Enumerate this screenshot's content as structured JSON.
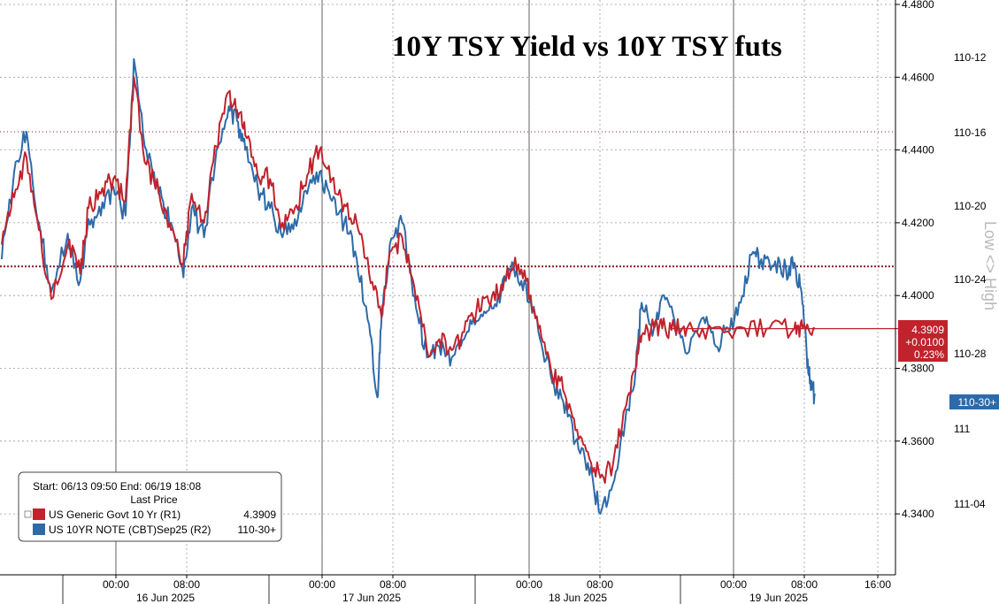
{
  "chart_data": {
    "type": "line",
    "title": "10Y TSY Yield vs 10Y TSY futs",
    "x_axis": {
      "time_ticks": [
        "00:00",
        "08:00",
        "00:00",
        "08:00",
        "00:00",
        "08:00",
        "00:00",
        "08:00",
        "16:00"
      ],
      "date_labels": [
        "16 Jun 2025",
        "17 Jun 2025",
        "18 Jun 2025",
        "19 Jun 2025"
      ]
    },
    "y_axis_right1": {
      "ticks": [
        "4.4800",
        "4.4600",
        "4.4400",
        "4.4200",
        "4.4000",
        "4.3800",
        "4.3600",
        "4.3400"
      ],
      "ylim": [
        4.328,
        4.48
      ]
    },
    "y_axis_right2": {
      "ticks": [
        "110-12",
        "110-16",
        "110-20",
        "110-24",
        "110-28",
        "111",
        "111-04"
      ],
      "label": "Low <> High"
    },
    "series": [
      {
        "name": "US Generic Govt 10 Yr  (R1)",
        "color": "#c0232c",
        "last_price": "4.3909",
        "change": "+0.0100",
        "change_pct": "0.23%",
        "points": [
          [
            0,
            4.414
          ],
          [
            1.5,
            4.427
          ],
          [
            3,
            4.438
          ],
          [
            4.5,
            4.418
          ],
          [
            6,
            4.399
          ],
          [
            8,
            4.414
          ],
          [
            9.5,
            4.406
          ],
          [
            10.5,
            4.424
          ],
          [
            12,
            4.428
          ],
          [
            13.5,
            4.432
          ],
          [
            15,
            4.426
          ],
          [
            16,
            4.46
          ],
          [
            17.5,
            4.436
          ],
          [
            19,
            4.429
          ],
          [
            20.5,
            4.418
          ],
          [
            22,
            4.409
          ],
          [
            23,
            4.428
          ],
          [
            24.5,
            4.42
          ],
          [
            26,
            4.441
          ],
          [
            27.5,
            4.456
          ],
          [
            28.5,
            4.451
          ],
          [
            29.5,
            4.444
          ],
          [
            31,
            4.433
          ],
          [
            32.5,
            4.432
          ],
          [
            34,
            4.42
          ],
          [
            35.5,
            4.424
          ],
          [
            37,
            4.433
          ],
          [
            38.5,
            4.44
          ],
          [
            40,
            4.432
          ],
          [
            41.5,
            4.425
          ],
          [
            43,
            4.42
          ],
          [
            44.5,
            4.406
          ],
          [
            46,
            4.394
          ],
          [
            47,
            4.412
          ],
          [
            48.5,
            4.416
          ],
          [
            50,
            4.402
          ],
          [
            51.5,
            4.385
          ],
          [
            53,
            4.388
          ],
          [
            54.5,
            4.385
          ],
          [
            56,
            4.39
          ],
          [
            57.5,
            4.396
          ],
          [
            59,
            4.398
          ],
          [
            60.5,
            4.403
          ],
          [
            62,
            4.408
          ],
          [
            63.5,
            4.404
          ],
          [
            65,
            4.391
          ],
          [
            66.5,
            4.38
          ],
          [
            68,
            4.374
          ],
          [
            69.5,
            4.363
          ],
          [
            71,
            4.357
          ],
          [
            72.5,
            4.35
          ],
          [
            74,
            4.353
          ],
          [
            75.5,
            4.369
          ],
          [
            76.8,
            4.38
          ],
          [
            77.5,
            4.389
          ],
          [
            79,
            4.391
          ],
          [
            80,
            4.391
          ],
          [
            81.5,
            4.391
          ],
          [
            83,
            4.391
          ],
          [
            86,
            4.391
          ],
          [
            90,
            4.391
          ],
          [
            93,
            4.391
          ],
          [
            96,
            4.391
          ],
          [
            97,
            4.391
          ],
          [
            98.5,
            4.3909
          ]
        ]
      },
      {
        "name": "US 10YR NOTE (CBT)Sep25  (R2)",
        "color": "#2e6aa8",
        "last_price": "110-30+",
        "points": [
          [
            0,
            4.41
          ],
          [
            1.5,
            4.434
          ],
          [
            3,
            4.445
          ],
          [
            4.5,
            4.42
          ],
          [
            6,
            4.401
          ],
          [
            8,
            4.417
          ],
          [
            9.5,
            4.404
          ],
          [
            10.5,
            4.421
          ],
          [
            12,
            4.422
          ],
          [
            13.5,
            4.43
          ],
          [
            15,
            4.422
          ],
          [
            16,
            4.465
          ],
          [
            17.5,
            4.44
          ],
          [
            19,
            4.428
          ],
          [
            20.5,
            4.42
          ],
          [
            22,
            4.405
          ],
          [
            23,
            4.424
          ],
          [
            24.5,
            4.416
          ],
          [
            26,
            4.44
          ],
          [
            27.5,
            4.452
          ],
          [
            28.5,
            4.448
          ],
          [
            29.5,
            4.44
          ],
          [
            31,
            4.43
          ],
          [
            32.5,
            4.424
          ],
          [
            34,
            4.416
          ],
          [
            35.5,
            4.421
          ],
          [
            37,
            4.428
          ],
          [
            38.5,
            4.434
          ],
          [
            40,
            4.426
          ],
          [
            41.5,
            4.42
          ],
          [
            43,
            4.41
          ],
          [
            44.5,
            4.392
          ],
          [
            45.5,
            4.372
          ],
          [
            46,
            4.394
          ],
          [
            47,
            4.414
          ],
          [
            48.5,
            4.42
          ],
          [
            50,
            4.4
          ],
          [
            51.5,
            4.383
          ],
          [
            53,
            4.386
          ],
          [
            54.5,
            4.383
          ],
          [
            56,
            4.388
          ],
          [
            57.5,
            4.393
          ],
          [
            59,
            4.396
          ],
          [
            60.5,
            4.401
          ],
          [
            62,
            4.408
          ],
          [
            63.5,
            4.403
          ],
          [
            65,
            4.39
          ],
          [
            66.5,
            4.378
          ],
          [
            68,
            4.371
          ],
          [
            69.5,
            4.36
          ],
          [
            71,
            4.354
          ],
          [
            72.5,
            4.34
          ],
          [
            74,
            4.348
          ],
          [
            75.5,
            4.365
          ],
          [
            76.8,
            4.38
          ],
          [
            77.5,
            4.398
          ],
          [
            79,
            4.391
          ],
          [
            80,
            4.4
          ],
          [
            81.5,
            4.393
          ],
          [
            83,
            4.384
          ],
          [
            85,
            4.394
          ],
          [
            86.5,
            4.386
          ],
          [
            88,
            4.391
          ],
          [
            89.5,
            4.398
          ],
          [
            91,
            4.412
          ],
          [
            92,
            4.41
          ],
          [
            93.5,
            4.408
          ],
          [
            95,
            4.407
          ],
          [
            96,
            4.409
          ],
          [
            96.8,
            4.402
          ],
          [
            97.5,
            4.384
          ],
          [
            98,
            4.374
          ],
          [
            98.5,
            4.373
          ]
        ]
      }
    ],
    "hlines": [
      4.445,
      4.408
    ],
    "legend": {
      "header": "Start: 06/13 09:50 End: 06/19 18:08",
      "subheader": "Last Price",
      "placement": "bottom-left"
    },
    "grid": true
  }
}
